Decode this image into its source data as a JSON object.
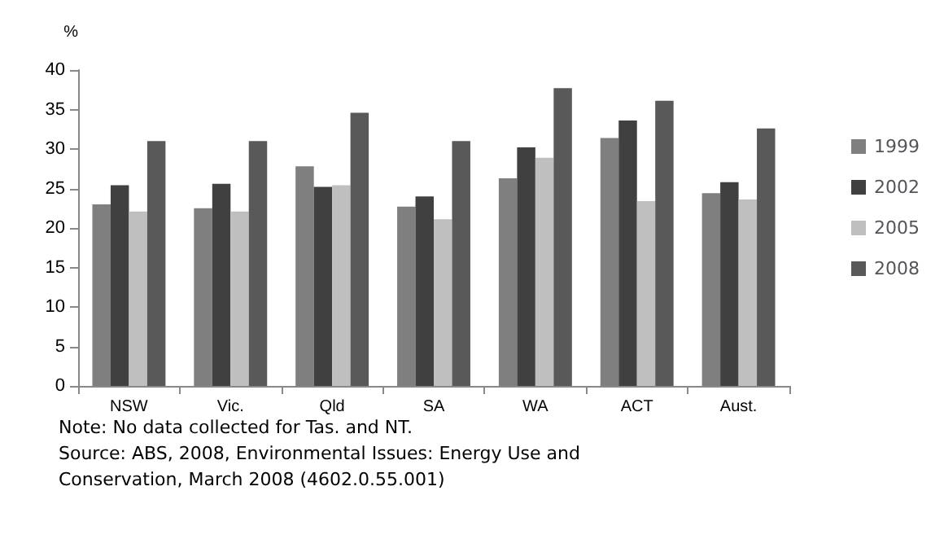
{
  "chart_data": {
    "type": "bar",
    "ylabel": "%",
    "categories": [
      "NSW",
      "Vic.",
      "Qld",
      "SA",
      "WA",
      "ACT",
      "Aust."
    ],
    "series": [
      {
        "name": "1999",
        "color": "#7f7f7f",
        "values": [
          23,
          22.5,
          27.8,
          22.7,
          26.3,
          31.4,
          24.4
        ]
      },
      {
        "name": "2002",
        "color": "#404040",
        "values": [
          25.4,
          25.6,
          25.2,
          24,
          30.2,
          33.6,
          25.8
        ]
      },
      {
        "name": "2005",
        "color": "#bfbfbf",
        "values": [
          22.1,
          22.1,
          25.4,
          21.1,
          28.9,
          23.4,
          23.6
        ]
      },
      {
        "name": "2008",
        "color": "#595959",
        "values": [
          31,
          31,
          34.6,
          31,
          37.7,
          36.1,
          32.6
        ]
      }
    ],
    "ylim": [
      0,
      40
    ],
    "yticks": [
      0,
      5,
      10,
      15,
      20,
      25,
      30,
      35,
      40
    ],
    "grid": false,
    "legend": "right",
    "annotations": [
      "Note: No data collected for Tas. and NT.",
      "Source: ABS, 2008, Environmental Issues: Energy Use and Conservation, March 2008 (4602.0.55.001)"
    ]
  }
}
